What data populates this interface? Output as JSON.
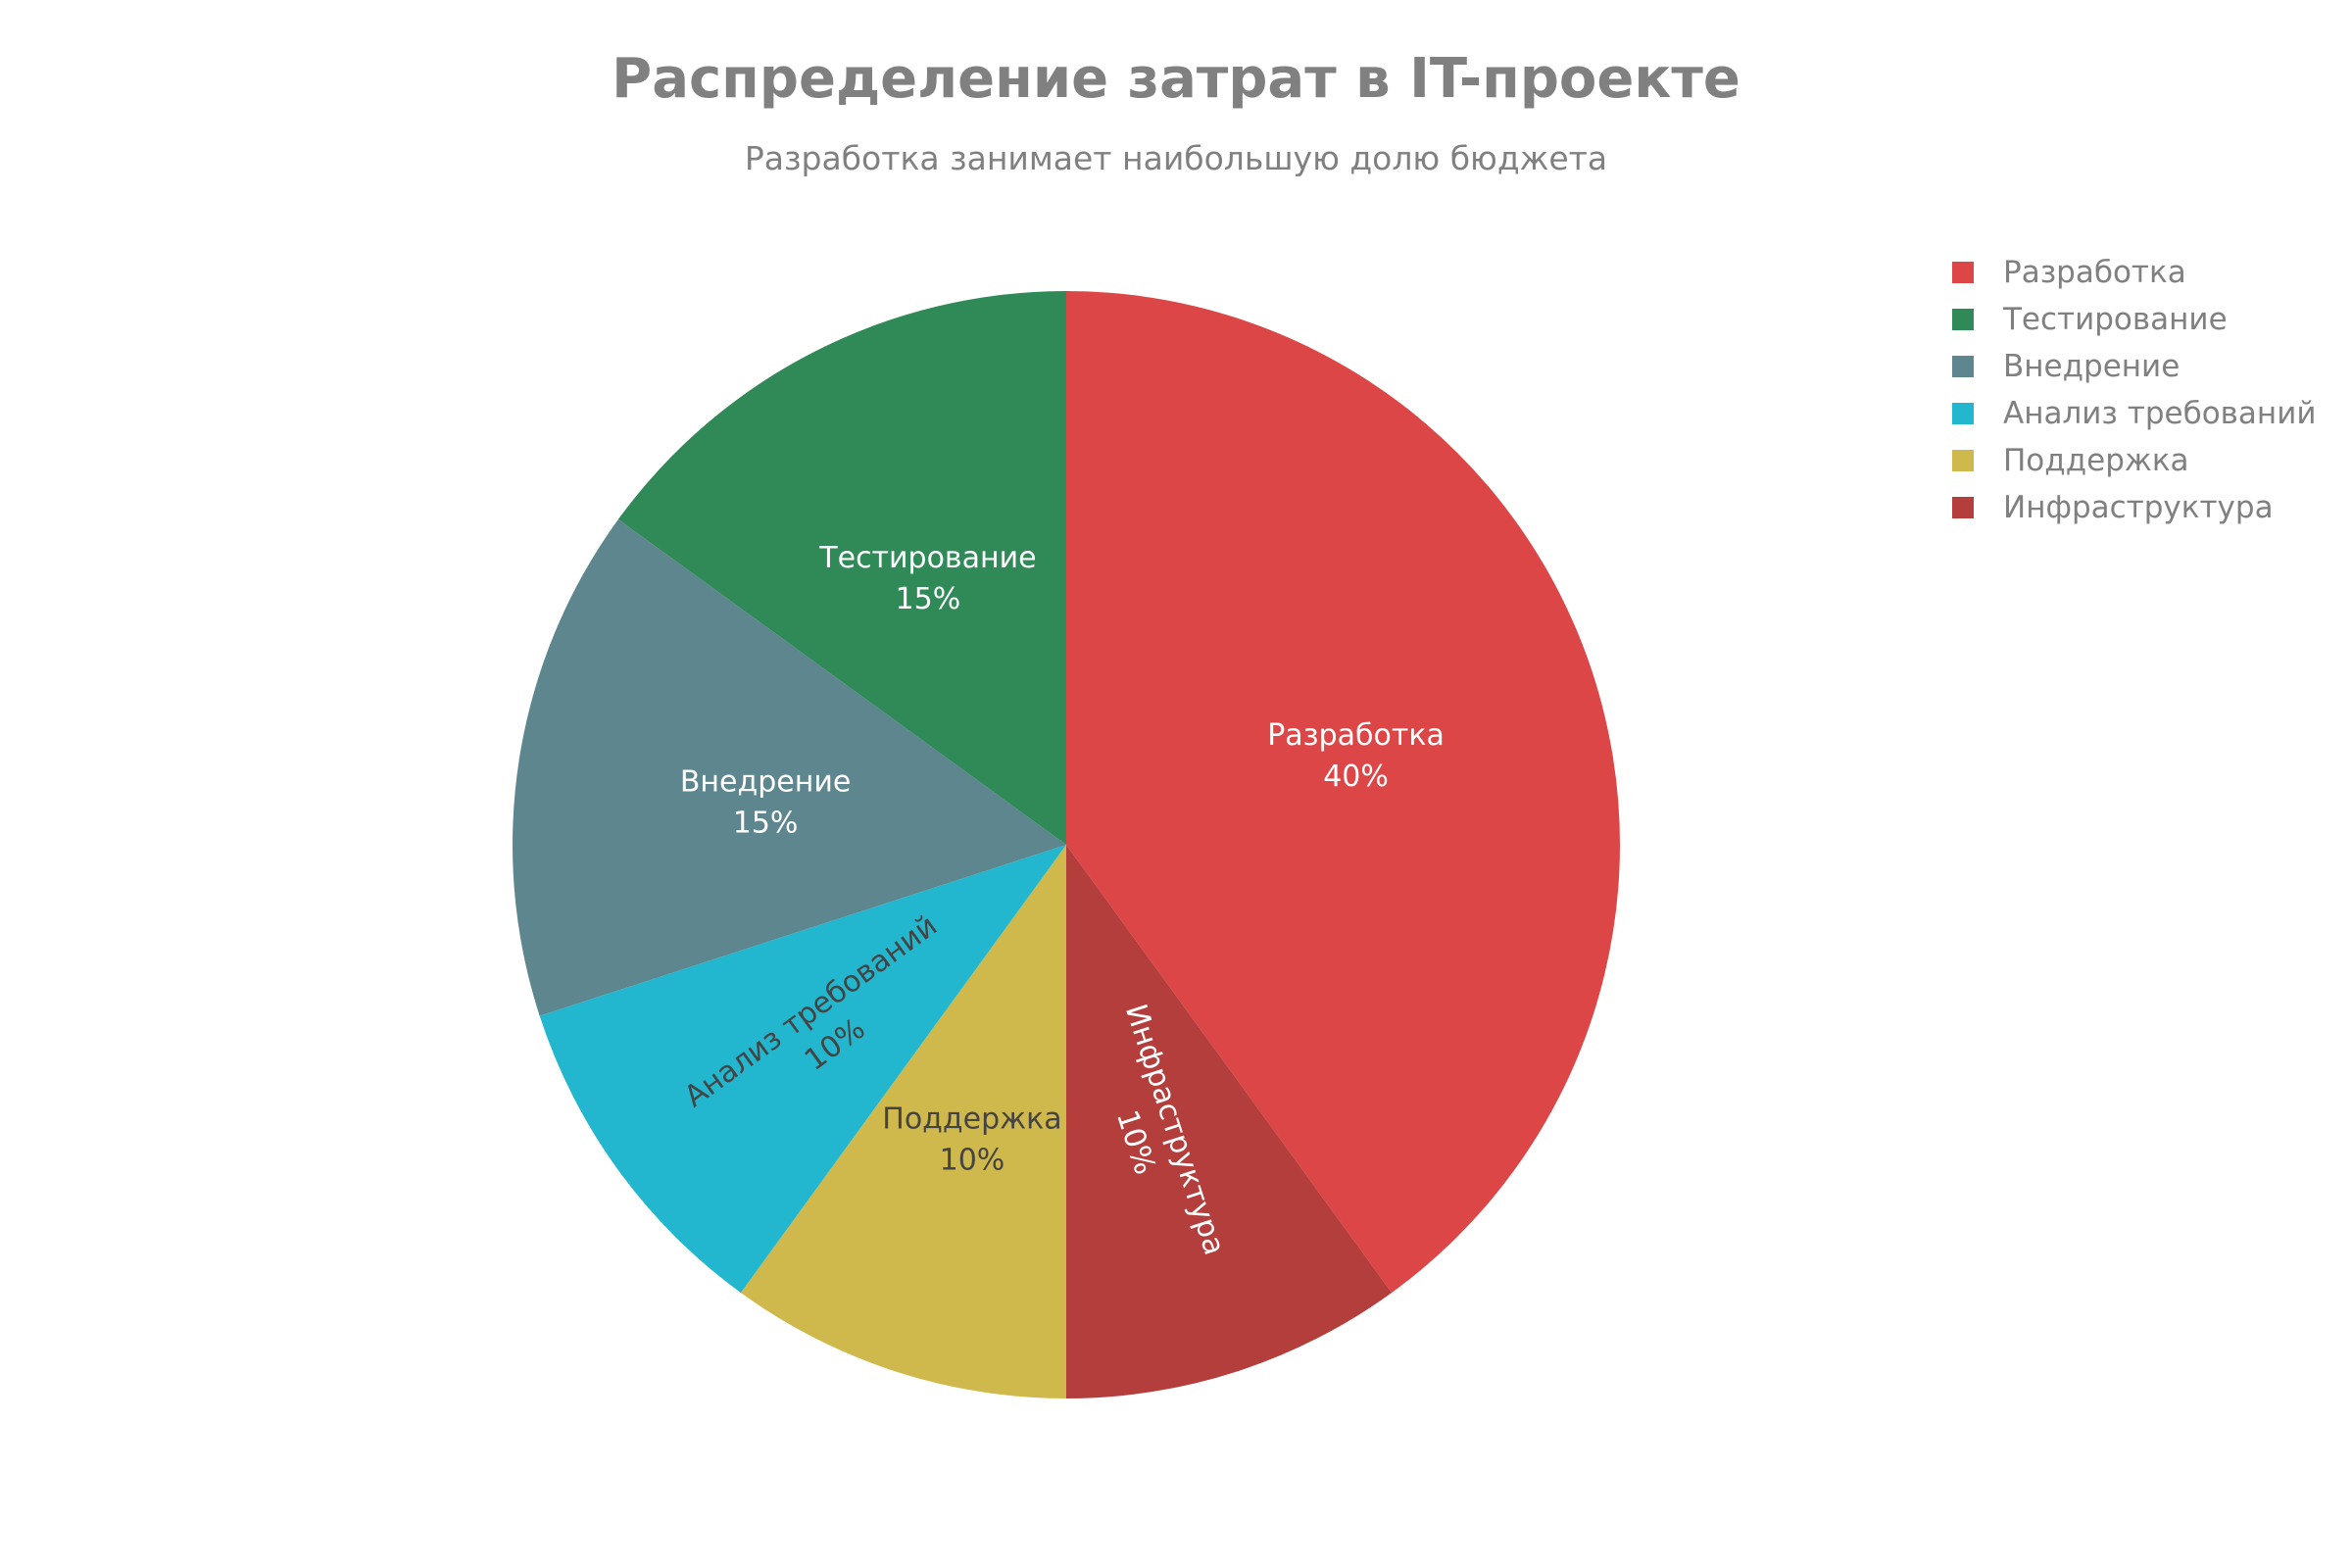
{
  "chart_data": {
    "type": "pie",
    "title": "Распределение затрат в IT-проекте",
    "subtitle": "Разработка занимает наибольшую долю бюджета",
    "legend_position": "top-right",
    "start_angle_deg": 0,
    "direction": "clockwise",
    "slices": [
      {
        "label": "Разработка",
        "value": 40,
        "text": "40%",
        "color": "#DC4647",
        "text_color": "#ffffff",
        "label_orientation": "horizontal"
      },
      {
        "label": "Инфраструктура",
        "value": 10,
        "text": "10%",
        "color": "#B33E3C",
        "text_color": "#ffffff",
        "label_orientation": "radial"
      },
      {
        "label": "Поддержка",
        "value": 10,
        "text": "10%",
        "color": "#D0B94C",
        "text_color": "#444444",
        "label_orientation": "horizontal"
      },
      {
        "label": "Анализ требований",
        "value": 10,
        "text": "10%",
        "color": "#22B7CE",
        "text_color": "#444444",
        "label_orientation": "radial"
      },
      {
        "label": "Внедрение",
        "value": 15,
        "text": "15%",
        "color": "#5E868E",
        "text_color": "#ffffff",
        "label_orientation": "horizontal"
      },
      {
        "label": "Тестирование",
        "value": 15,
        "text": "15%",
        "color": "#2F8A58",
        "text_color": "#ffffff",
        "label_orientation": "horizontal"
      }
    ],
    "legend": [
      "Разработка",
      "Тестирование",
      "Внедрение",
      "Анализ требований",
      "Поддержка",
      "Инфраструктура"
    ]
  }
}
